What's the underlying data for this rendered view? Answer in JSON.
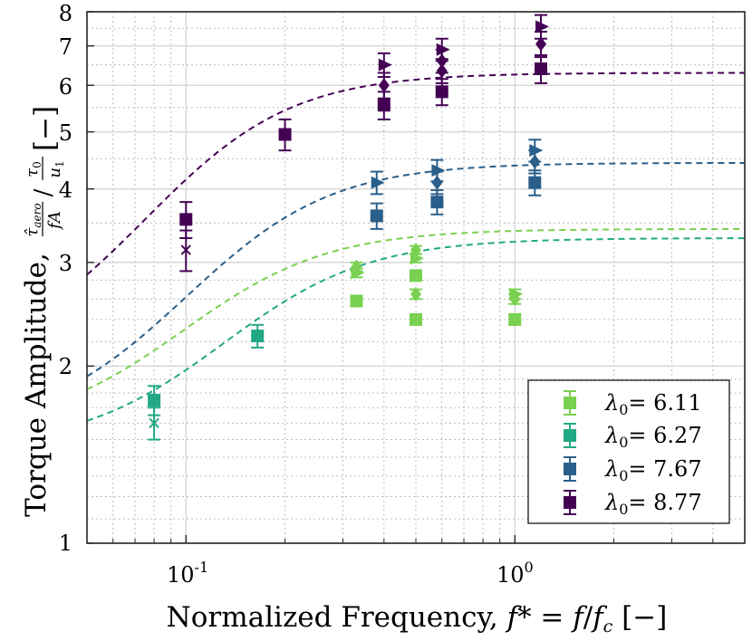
{
  "chart_data": {
    "type": "scatter",
    "xscale": "log",
    "yscale": "log",
    "xlim": [
      0.05,
      5
    ],
    "ylim": [
      1,
      8
    ],
    "grid": true,
    "xlabel": "Normalized Frequency, f* = f/f_c [−]",
    "xlabel_parts": {
      "a": "Normalized Frequency, ",
      "b": "f",
      "c": "* = ",
      "d": "f",
      "e": "/",
      "f": "f",
      "g": "c",
      "h": " [−]"
    },
    "ylabel": "Torque Amplitude, τ̂_aero/fA / τ0/u1 [−]",
    "ylabel_parts": {
      "a": "Torque Amplitude, ",
      "b": "τ̂",
      "c": "aero",
      "d": "fA",
      "e": "/",
      "f": "τ",
      "g": "0",
      "h": "u",
      "i": "1",
      "j": " [−]"
    },
    "x_ticks": [
      {
        "value": 0.1,
        "base": "10",
        "exp": "-1"
      },
      {
        "value": 1,
        "base": "10",
        "exp": "0"
      }
    ],
    "y_ticks": [
      {
        "value": 1,
        "label": "1"
      },
      {
        "value": 2,
        "label": "2"
      },
      {
        "value": 3,
        "label": "3"
      },
      {
        "value": 4,
        "label": "4"
      },
      {
        "value": 5,
        "label": "5"
      },
      {
        "value": 6,
        "label": "6"
      },
      {
        "value": 7,
        "label": "7"
      },
      {
        "value": 8,
        "label": "8"
      }
    ],
    "legend": {
      "position": "bottom-right"
    },
    "series": [
      {
        "name": "λ0 = 6.11",
        "legend_label": "= 6.11",
        "color": "#7ad151",
        "fit": {
          "A": 3.42,
          "B": 1.55,
          "fc": 0.12
        },
        "points": [
          {
            "x": 0.33,
            "y": 2.95,
            "m": "diamond",
            "e": 0.05
          },
          {
            "x": 0.33,
            "y": 2.88,
            "m": "triangle",
            "e": 0.05
          },
          {
            "x": 0.33,
            "y": 2.58,
            "m": "square",
            "e": 0.05
          },
          {
            "x": 0.5,
            "y": 3.15,
            "m": "diamond",
            "e": 0.05
          },
          {
            "x": 0.5,
            "y": 3.05,
            "m": "triangle",
            "e": 0.05
          },
          {
            "x": 0.5,
            "y": 2.85,
            "m": "square",
            "e": 0.05
          },
          {
            "x": 0.5,
            "y": 2.65,
            "m": "diamond",
            "e": 0.05
          },
          {
            "x": 0.5,
            "y": 2.4,
            "m": "square",
            "e": 0.05
          },
          {
            "x": 1.0,
            "y": 2.65,
            "m": "triangle",
            "e": 0.05
          },
          {
            "x": 1.0,
            "y": 2.6,
            "m": "diamond",
            "e": 0.05
          },
          {
            "x": 1.0,
            "y": 2.4,
            "m": "square",
            "e": 0.05
          }
        ]
      },
      {
        "name": "λ0 = 6.27",
        "legend_label": "= 6.27",
        "color": "#22a884",
        "fit": {
          "A": 3.3,
          "B": 1.45,
          "fc": 0.16
        },
        "points": [
          {
            "x": 0.08,
            "y": 1.75,
            "m": "square",
            "e": 0.1
          },
          {
            "x": 0.08,
            "y": 1.6,
            "m": "cross",
            "e": 0.1
          },
          {
            "x": 0.165,
            "y": 2.25,
            "m": "square",
            "e": 0.1
          }
        ]
      },
      {
        "name": "λ0 = 7.67",
        "legend_label": "= 7.67",
        "color": "#2a5f8a",
        "fit": {
          "A": 4.43,
          "B": 1.55,
          "fc": 0.13
        },
        "points": [
          {
            "x": 0.38,
            "y": 4.1,
            "m": "triangle",
            "e": 0.18
          },
          {
            "x": 0.38,
            "y": 3.6,
            "m": "square",
            "e": 0.18
          },
          {
            "x": 0.58,
            "y": 4.3,
            "m": "triangle",
            "e": 0.18
          },
          {
            "x": 0.58,
            "y": 4.1,
            "m": "diamond",
            "e": 0.18
          },
          {
            "x": 0.58,
            "y": 3.8,
            "m": "square",
            "e": 0.18
          },
          {
            "x": 1.15,
            "y": 4.65,
            "m": "triangle",
            "e": 0.2
          },
          {
            "x": 1.15,
            "y": 4.45,
            "m": "diamond",
            "e": 0.2
          },
          {
            "x": 1.15,
            "y": 4.1,
            "m": "square",
            "e": 0.2
          }
        ]
      },
      {
        "name": "λ0 = 8.77",
        "legend_label": "= 8.77",
        "color": "#440154",
        "fit": {
          "A": 6.3,
          "B": 2.0,
          "fc": 0.1
        },
        "points": [
          {
            "x": 0.1,
            "y": 3.55,
            "m": "square",
            "e": 0.25
          },
          {
            "x": 0.1,
            "y": 3.15,
            "m": "cross",
            "e": 0.25
          },
          {
            "x": 0.2,
            "y": 4.95,
            "m": "square",
            "e": 0.3
          },
          {
            "x": 0.4,
            "y": 6.5,
            "m": "triangle",
            "e": 0.3
          },
          {
            "x": 0.4,
            "y": 6.0,
            "m": "diamond",
            "e": 0.3
          },
          {
            "x": 0.4,
            "y": 5.55,
            "m": "square",
            "e": 0.3
          },
          {
            "x": 0.6,
            "y": 6.9,
            "m": "triangle",
            "e": 0.3
          },
          {
            "x": 0.6,
            "y": 6.6,
            "m": "diamond",
            "e": 0.3
          },
          {
            "x": 0.6,
            "y": 6.35,
            "m": "diamond",
            "e": 0.3
          },
          {
            "x": 0.6,
            "y": 5.85,
            "m": "square",
            "e": 0.3
          },
          {
            "x": 1.2,
            "y": 7.55,
            "m": "triangle",
            "e": 0.35
          },
          {
            "x": 1.2,
            "y": 7.05,
            "m": "diamond",
            "e": 0.35
          },
          {
            "x": 1.2,
            "y": 6.4,
            "m": "square",
            "e": 0.35
          }
        ]
      }
    ]
  }
}
